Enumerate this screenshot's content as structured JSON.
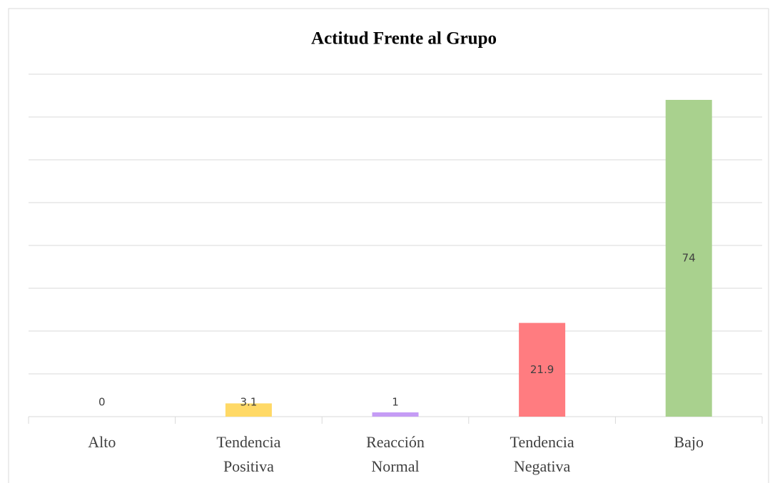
{
  "chart_data": {
    "type": "bar",
    "title": "Actitud Frente al Grupo",
    "categories": [
      "Alto",
      "Tendencia Positiva",
      "Reacción Normal",
      "Tendencia Negativa",
      "Bajo"
    ],
    "values": [
      0,
      3.1,
      1,
      21.9,
      74
    ],
    "colors": [
      "#5b9bd5",
      "#ffd966",
      "#c59cf5",
      "#ff7c80",
      "#a9d18e"
    ],
    "ylim": [
      0,
      80
    ],
    "yticks": [
      0,
      10,
      20,
      30,
      40,
      50,
      60,
      70,
      80
    ],
    "grid": true
  }
}
